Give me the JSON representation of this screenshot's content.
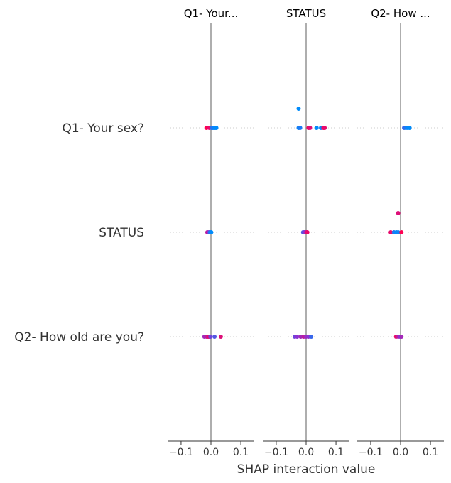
{
  "chart_data": {
    "type": "scatter",
    "title": "",
    "xlabel": "SHAP interaction value",
    "xlim": [
      -0.145,
      0.145
    ],
    "xticks": [
      -0.1,
      0.0,
      0.1
    ],
    "xtick_labels": [
      "−0.1",
      "0.0",
      "0.1"
    ],
    "panels": [
      "Q1- Your...",
      "STATUS",
      "Q2- How ..."
    ],
    "rows": [
      "Q1- Your sex?",
      "STATUS",
      "Q2- How old are you?"
    ],
    "colors": {
      "low": "#008bfb",
      "high": "#ff0052",
      "zero_line": "#999999",
      "grid": "#cccccc",
      "axis": "#333333"
    },
    "points": [
      {
        "panel": 0,
        "row": 0,
        "x": -0.015,
        "y": 0,
        "c": 1.0
      },
      {
        "panel": 0,
        "row": 0,
        "x": -0.005,
        "y": 0,
        "c": 0.9
      },
      {
        "panel": 0,
        "row": 0,
        "x": 0.002,
        "y": 0,
        "c": 0.1
      },
      {
        "panel": 0,
        "row": 0,
        "x": 0.006,
        "y": 0,
        "c": 0.2
      },
      {
        "panel": 0,
        "row": 0,
        "x": 0.01,
        "y": 0,
        "c": 0.0
      },
      {
        "panel": 0,
        "row": 0,
        "x": 0.014,
        "y": 0,
        "c": 0.05
      },
      {
        "panel": 0,
        "row": 0,
        "x": 0.018,
        "y": 0,
        "c": 0.0
      },
      {
        "panel": 0,
        "row": 1,
        "x": -0.012,
        "y": 0,
        "c": 0.7
      },
      {
        "panel": 0,
        "row": 1,
        "x": -0.007,
        "y": 0,
        "c": 0.5
      },
      {
        "panel": 0,
        "row": 1,
        "x": -0.003,
        "y": 0,
        "c": 0.1
      },
      {
        "panel": 0,
        "row": 1,
        "x": 0.001,
        "y": 0,
        "c": 0.0
      },
      {
        "panel": 0,
        "row": 2,
        "x": -0.022,
        "y": 0,
        "c": 0.6
      },
      {
        "panel": 0,
        "row": 2,
        "x": -0.015,
        "y": 0,
        "c": 0.7
      },
      {
        "panel": 0,
        "row": 2,
        "x": -0.01,
        "y": 0,
        "c": 0.8
      },
      {
        "panel": 0,
        "row": 2,
        "x": -0.006,
        "y": 0,
        "c": 0.9
      },
      {
        "panel": 0,
        "row": 2,
        "x": -0.002,
        "y": 0,
        "c": 0.4
      },
      {
        "panel": 0,
        "row": 2,
        "x": 0.012,
        "y": 0,
        "c": 0.3
      },
      {
        "panel": 0,
        "row": 2,
        "x": 0.033,
        "y": 0,
        "c": 0.85
      },
      {
        "panel": 1,
        "row": 0,
        "x": -0.025,
        "y": 1,
        "c": 0.0
      },
      {
        "panel": 1,
        "row": 0,
        "x": -0.025,
        "y": 0,
        "c": 0.05
      },
      {
        "panel": 1,
        "row": 0,
        "x": -0.02,
        "y": 0,
        "c": 0.1
      },
      {
        "panel": 1,
        "row": 0,
        "x": 0.008,
        "y": 0,
        "c": 0.95
      },
      {
        "panel": 1,
        "row": 0,
        "x": 0.013,
        "y": 0,
        "c": 0.85
      },
      {
        "panel": 1,
        "row": 0,
        "x": 0.035,
        "y": 0,
        "c": 0.0
      },
      {
        "panel": 1,
        "row": 0,
        "x": 0.05,
        "y": 0,
        "c": 0.05
      },
      {
        "panel": 1,
        "row": 0,
        "x": 0.058,
        "y": 0,
        "c": 1.0
      },
      {
        "panel": 1,
        "row": 0,
        "x": 0.062,
        "y": 0,
        "c": 0.9
      },
      {
        "panel": 1,
        "row": 1,
        "x": -0.01,
        "y": 0,
        "c": 0.3
      },
      {
        "panel": 1,
        "row": 1,
        "x": -0.006,
        "y": 0,
        "c": 0.4
      },
      {
        "panel": 1,
        "row": 1,
        "x": -0.003,
        "y": 0,
        "c": 0.5
      },
      {
        "panel": 1,
        "row": 1,
        "x": 0.001,
        "y": 0,
        "c": 0.8
      },
      {
        "panel": 1,
        "row": 1,
        "x": 0.004,
        "y": 0,
        "c": 0.9
      },
      {
        "panel": 1,
        "row": 2,
        "x": -0.038,
        "y": 0,
        "c": 0.4
      },
      {
        "panel": 1,
        "row": 2,
        "x": -0.03,
        "y": 0,
        "c": 0.5
      },
      {
        "panel": 1,
        "row": 2,
        "x": -0.018,
        "y": 0,
        "c": 0.6
      },
      {
        "panel": 1,
        "row": 2,
        "x": -0.008,
        "y": 0,
        "c": 0.7
      },
      {
        "panel": 1,
        "row": 2,
        "x": 0.0,
        "y": 0,
        "c": 0.55
      },
      {
        "panel": 1,
        "row": 2,
        "x": 0.008,
        "y": 0,
        "c": 0.5
      },
      {
        "panel": 1,
        "row": 2,
        "x": 0.017,
        "y": 0,
        "c": 0.2
      },
      {
        "panel": 2,
        "row": 0,
        "x": 0.012,
        "y": 0,
        "c": 0.2
      },
      {
        "panel": 2,
        "row": 0,
        "x": 0.018,
        "y": 0,
        "c": 0.1
      },
      {
        "panel": 2,
        "row": 0,
        "x": 0.024,
        "y": 0,
        "c": 0.0
      },
      {
        "panel": 2,
        "row": 0,
        "x": 0.03,
        "y": 0,
        "c": 0.0
      },
      {
        "panel": 2,
        "row": 1,
        "x": -0.008,
        "y": 1,
        "c": 0.85
      },
      {
        "panel": 2,
        "row": 1,
        "x": -0.033,
        "y": 0,
        "c": 0.9
      },
      {
        "panel": 2,
        "row": 1,
        "x": -0.022,
        "y": 0,
        "c": 0.1
      },
      {
        "panel": 2,
        "row": 1,
        "x": -0.014,
        "y": 0,
        "c": 0.0
      },
      {
        "panel": 2,
        "row": 1,
        "x": -0.008,
        "y": 0,
        "c": 0.05
      },
      {
        "panel": 2,
        "row": 1,
        "x": 0.003,
        "y": 0,
        "c": 1.0
      },
      {
        "panel": 2,
        "row": 2,
        "x": -0.015,
        "y": 0,
        "c": 0.9
      },
      {
        "panel": 2,
        "row": 2,
        "x": -0.008,
        "y": 0,
        "c": 0.7
      },
      {
        "panel": 2,
        "row": 2,
        "x": -0.002,
        "y": 0,
        "c": 0.5
      },
      {
        "panel": 2,
        "row": 2,
        "x": 0.003,
        "y": 0,
        "c": 0.6
      }
    ]
  }
}
